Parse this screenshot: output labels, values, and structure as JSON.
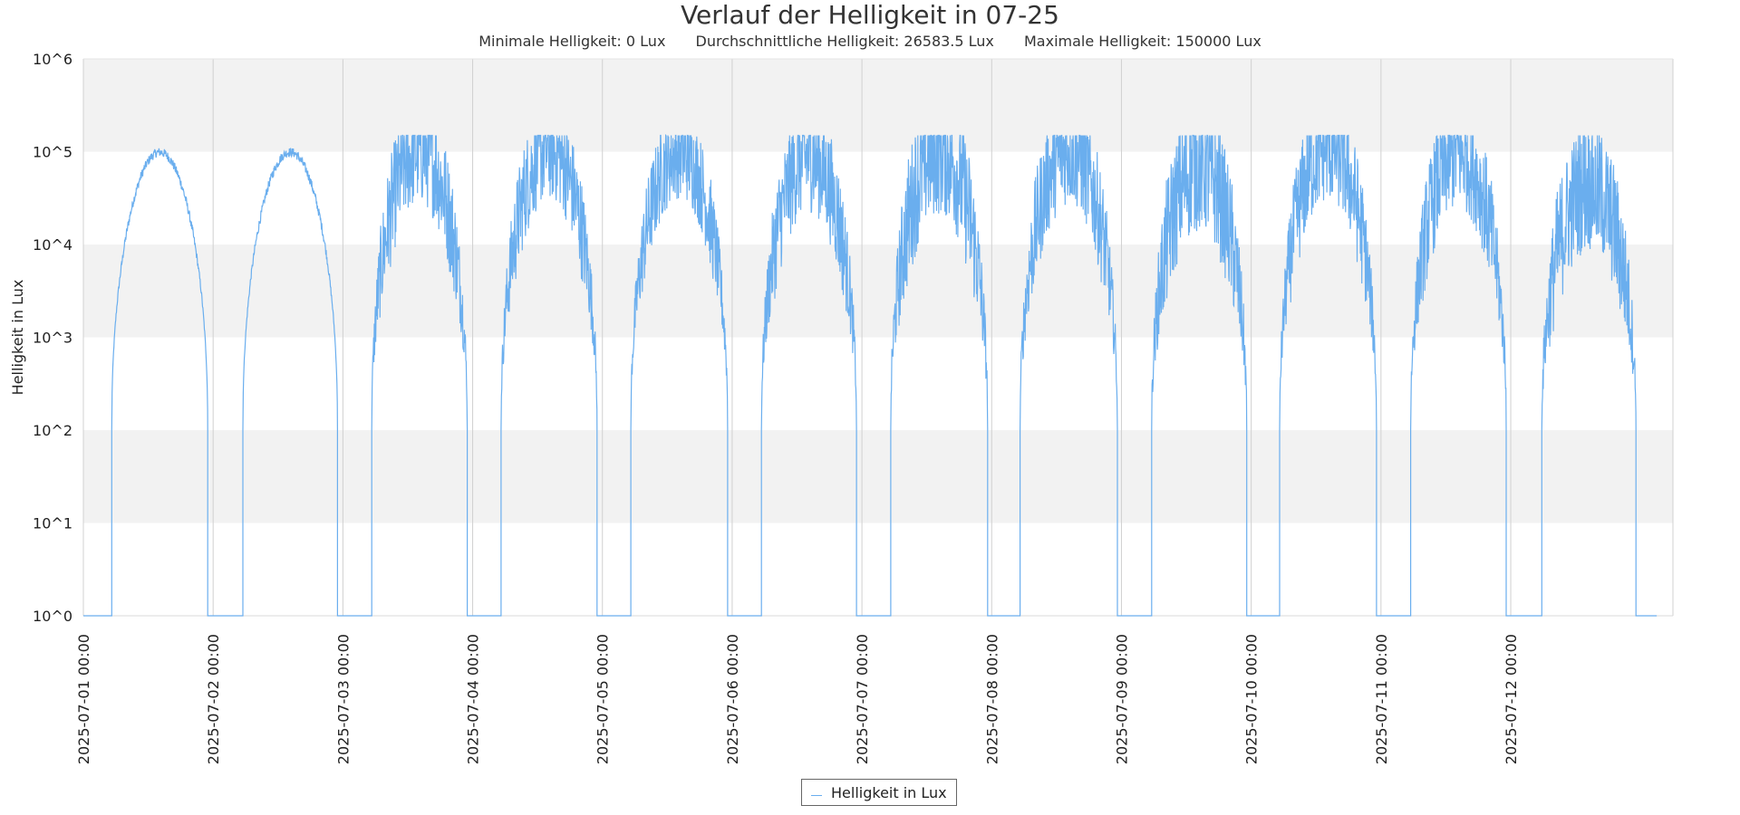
{
  "chart_data": {
    "type": "line",
    "title": "Verlauf der Helligkeit in 07-25",
    "stats": {
      "min_label": "Minimale Helligkeit: 0 Lux",
      "avg_label": "Durchschnittliche Helligkeit: 26583.5 Lux",
      "max_label": "Maximale Helligkeit: 150000 Lux"
    },
    "ylabel": "Helligkeit in Lux",
    "xlabel": "",
    "y_scale": "log",
    "ylim": [
      1,
      1000000
    ],
    "y_tick_labels": [
      "10^0",
      "10^1",
      "10^2",
      "10^3",
      "10^4",
      "10^5",
      "10^6"
    ],
    "y_tick_values": [
      1,
      10,
      100,
      1000,
      10000,
      100000,
      1000000
    ],
    "x_tick_labels": [
      "2025-07-01 00:00",
      "2025-07-02 00:00",
      "2025-07-03 00:00",
      "2025-07-04 00:00",
      "2025-07-05 00:00",
      "2025-07-06 00:00",
      "2025-07-07 00:00",
      "2025-07-08 00:00",
      "2025-07-09 00:00",
      "2025-07-10 00:00",
      "2025-07-11 00:00",
      "2025-07-12 00:00"
    ],
    "xlim": [
      "2025-07-01 00:00",
      "2025-07-13 06:00"
    ],
    "grid": "vertical lines at day ticks, alternating horizontal bands per decade",
    "legend_position": "bottom-center",
    "line_color": "#6aaeee",
    "band_color": "#f2f2f2",
    "series": [
      {
        "name": "Helligkeit in Lux",
        "days": [
          {
            "date": "2025-07-01",
            "rise": "05:15",
            "set": "23:00",
            "peak": 100000,
            "volatility": 0.05
          },
          {
            "date": "2025-07-02",
            "rise": "05:30",
            "set": "23:00",
            "peak": 100000,
            "volatility": 0.05
          },
          {
            "date": "2025-07-03",
            "rise": "05:20",
            "set": "23:00",
            "peak": 120000,
            "volatility": 0.6
          },
          {
            "date": "2025-07-04",
            "rise": "05:15",
            "set": "23:00",
            "peak": 120000,
            "volatility": 0.55
          },
          {
            "date": "2025-07-05",
            "rise": "05:15",
            "set": "23:10",
            "peak": 110000,
            "volatility": 0.5
          },
          {
            "date": "2025-07-06",
            "rise": "05:25",
            "set": "23:00",
            "peak": 100000,
            "volatility": 0.6
          },
          {
            "date": "2025-07-07",
            "rise": "05:20",
            "set": "23:15",
            "peak": 120000,
            "volatility": 0.7
          },
          {
            "date": "2025-07-08",
            "rise": "05:15",
            "set": "23:15",
            "peak": 120000,
            "volatility": 0.6
          },
          {
            "date": "2025-07-09",
            "rise": "05:35",
            "set": "23:10",
            "peak": 80000,
            "volatility": 0.7
          },
          {
            "date": "2025-07-10",
            "rise": "05:15",
            "set": "23:10",
            "peak": 130000,
            "volatility": 0.6
          },
          {
            "date": "2025-07-11",
            "rise": "05:30",
            "set": "23:10",
            "peak": 110000,
            "volatility": 0.6
          },
          {
            "date": "2025-07-12",
            "rise": "05:45",
            "set": "23:10",
            "peak": 50000,
            "volatility": 0.7
          }
        ],
        "end": "2025-07-13 03:00"
      }
    ]
  }
}
